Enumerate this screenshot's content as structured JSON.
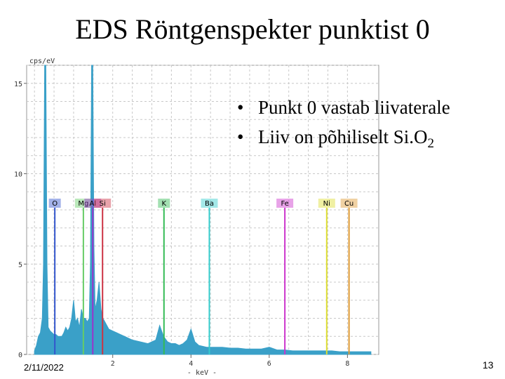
{
  "slide": {
    "title": "EDS Röntgenspekter punktist 0",
    "bullets": [
      {
        "text": "Punkt 0 vastab liivaterale",
        "sub": ""
      },
      {
        "text": "Liiv on põhiliselt Si.O",
        "sub": "2"
      }
    ],
    "date": "2/11/2022",
    "page_number": "13"
  },
  "chart_data": {
    "type": "line",
    "ylabel": "cps/eV",
    "xlabel": "- keV -",
    "xlim": [
      -0.2,
      8.8
    ],
    "ylim": [
      0,
      16
    ],
    "x_ticks": [
      2,
      4,
      6,
      8
    ],
    "y_ticks": [
      0,
      5,
      10,
      15
    ],
    "grid": true,
    "spectrum": {
      "color": "#3aa0c8",
      "x": [
        0.0,
        0.05,
        0.1,
        0.15,
        0.2,
        0.23,
        0.26,
        0.29,
        0.32,
        0.35,
        0.4,
        0.45,
        0.5,
        0.55,
        0.6,
        0.65,
        0.7,
        0.75,
        0.8,
        0.85,
        0.9,
        0.95,
        1.0,
        1.05,
        1.1,
        1.15,
        1.2,
        1.25,
        1.3,
        1.35,
        1.4,
        1.43,
        1.46,
        1.49,
        1.52,
        1.55,
        1.6,
        1.65,
        1.7,
        1.75,
        1.8,
        1.9,
        2.0,
        2.1,
        2.2,
        2.3,
        2.5,
        2.7,
        2.9,
        3.1,
        3.2,
        3.3,
        3.4,
        3.5,
        3.6,
        3.7,
        3.8,
        3.9,
        4.0,
        4.1,
        4.2,
        4.4,
        4.6,
        4.8,
        5.0,
        5.2,
        5.4,
        5.6,
        5.8,
        6.0,
        6.2,
        6.4,
        6.6,
        6.8,
        7.0,
        7.2,
        7.4,
        7.6,
        7.8,
        8.0,
        8.2,
        8.4,
        8.6
      ],
      "y": [
        0.2,
        0.5,
        1.0,
        1.2,
        2.0,
        5.0,
        18.0,
        18.0,
        5.0,
        1.5,
        1.3,
        1.2,
        1.1,
        1.1,
        1.0,
        1.0,
        1.0,
        1.2,
        1.5,
        1.3,
        1.5,
        2.0,
        3.0,
        1.8,
        2.0,
        1.5,
        2.5,
        2.0,
        2.0,
        1.8,
        2.0,
        5.0,
        18.0,
        18.0,
        6.0,
        2.5,
        3.0,
        4.0,
        2.5,
        2.0,
        1.8,
        1.4,
        1.3,
        1.2,
        1.1,
        1.0,
        0.8,
        0.7,
        0.6,
        0.8,
        1.6,
        1.0,
        0.7,
        0.6,
        0.6,
        0.5,
        0.6,
        0.8,
        1.4,
        0.7,
        0.5,
        0.4,
        0.4,
        0.4,
        0.35,
        0.35,
        0.3,
        0.3,
        0.3,
        0.4,
        0.25,
        0.25,
        0.2,
        0.2,
        0.2,
        0.2,
        0.2,
        0.2,
        0.15,
        0.15,
        0.15,
        0.15,
        0.15
      ]
    },
    "elements": [
      {
        "label": "O",
        "x": 0.52,
        "color": "#3355cc"
      },
      {
        "label": "Mg",
        "x": 1.25,
        "color": "#66cc66"
      },
      {
        "label": "Al",
        "x": 1.49,
        "color": "#9933cc"
      },
      {
        "label": "Si",
        "x": 1.74,
        "color": "#cc3344"
      },
      {
        "label": "K",
        "x": 3.31,
        "color": "#33bb55"
      },
      {
        "label": "Ba",
        "x": 4.47,
        "color": "#33cccc"
      },
      {
        "label": "Fe",
        "x": 6.4,
        "color": "#cc33cc"
      },
      {
        "label": "Ni",
        "x": 7.47,
        "color": "#dddd33"
      },
      {
        "label": "Cu",
        "x": 8.04,
        "color": "#dd9933"
      }
    ]
  }
}
